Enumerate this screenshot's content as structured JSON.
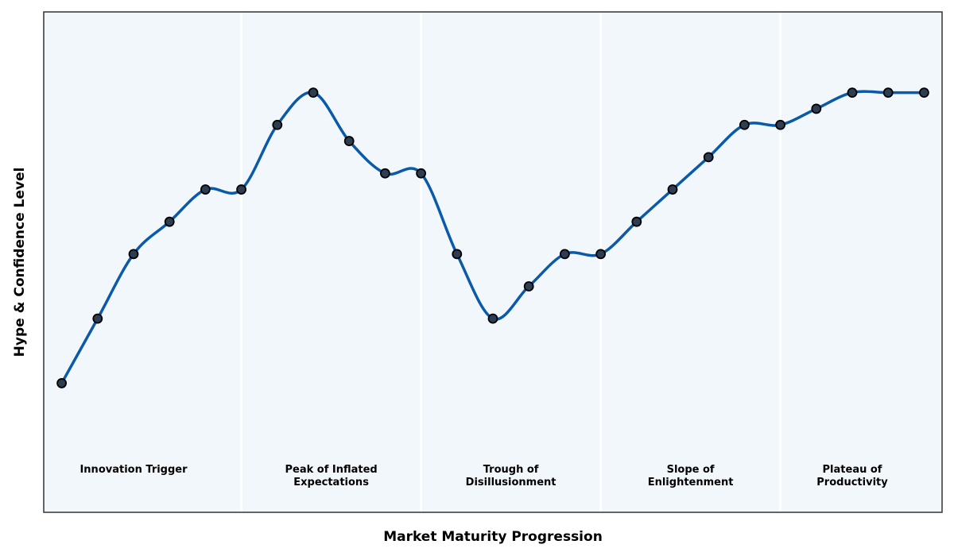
{
  "chart_data": {
    "type": "line",
    "title": "",
    "xlabel": "Market Maturity Progression",
    "ylabel": "Hype & Confidence Level",
    "xlim": [
      -0.5,
      24.5
    ],
    "ylim": [
      0,
      15.5
    ],
    "grid": false,
    "x": [
      0,
      1,
      2,
      3,
      4,
      5,
      6,
      7,
      8,
      9,
      10,
      11,
      12,
      13,
      14,
      15,
      16,
      17,
      18,
      19,
      20,
      21,
      22,
      23,
      24
    ],
    "series": [
      {
        "values": [
          4,
          6,
          8,
          9,
          10,
          10,
          12,
          13,
          11.5,
          10.5,
          10.5,
          8,
          6,
          7,
          8,
          8,
          9,
          10,
          11,
          12,
          12,
          12.5,
          13,
          13,
          13
        ]
      }
    ],
    "phases": [
      {
        "label": [
          "Innovation Trigger"
        ],
        "x_start": -0.5,
        "x_end": 5
      },
      {
        "label": [
          "Peak of Inflated",
          "Expectations"
        ],
        "x_start": 5,
        "x_end": 10
      },
      {
        "label": [
          "Trough of",
          "Disillusionment"
        ],
        "x_start": 10,
        "x_end": 15
      },
      {
        "label": [
          "Slope of",
          "Enlightenment"
        ],
        "x_start": 15,
        "x_end": 20
      },
      {
        "label": [
          "Plateau of",
          "Productivity"
        ],
        "x_start": 20,
        "x_end": 24.5
      }
    ],
    "colors": {
      "line": "#0a5aa8",
      "marker_fill": "#2e3e52",
      "marker_edge": "#000000",
      "plot_bg": "#f2f7fb",
      "divider": "#ffffff",
      "frame": "#333333"
    }
  }
}
